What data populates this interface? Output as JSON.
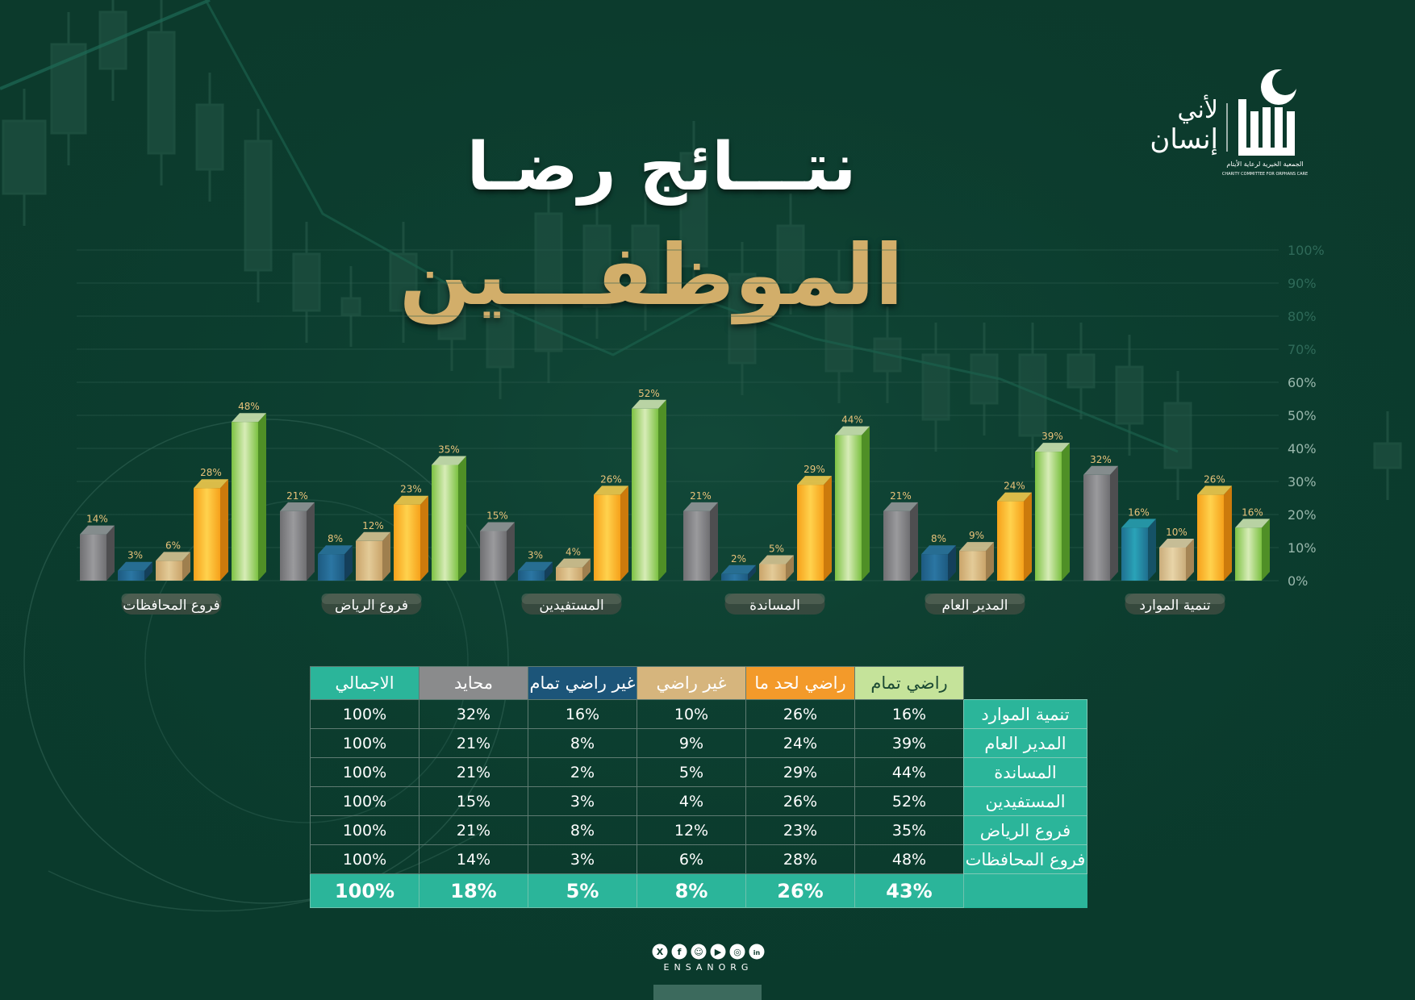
{
  "title_line1": "نتـــائج رضـا",
  "title_line2": "الموظفـــين",
  "logo": {
    "text_main": "إنسان",
    "text_side1": "لأني",
    "text_side2": "إنسان",
    "subtitle_ar": "الجمعية الخيرية لرعاية الأيتام",
    "subtitle_en": "CHARITY COMMITTEE FOR ORPHANS CARE"
  },
  "colors": {
    "very_satisfied": "#7bc043",
    "somewhat_satisfied": "#f7a21b",
    "not_satisfied": "#c9ad78",
    "not_satisfied_at_all": "#1f5f86",
    "neutral": "#8a8a8a",
    "table_accent": "#2bb59a"
  },
  "chart_data": {
    "type": "bar",
    "ylim": [
      0,
      100
    ],
    "yticks": [
      "0%",
      "10%",
      "20%",
      "30%",
      "40%",
      "50%",
      "60%",
      "70%",
      "80%",
      "90%",
      "100%"
    ],
    "groups": [
      {
        "label": "فروع المحافظات",
        "values": [
          14,
          3,
          6,
          28,
          48
        ]
      },
      {
        "label": "فروع الرياض",
        "values": [
          21,
          8,
          12,
          23,
          35
        ]
      },
      {
        "label": "المستفيدين",
        "values": [
          15,
          3,
          4,
          26,
          52
        ]
      },
      {
        "label": "المساندة",
        "values": [
          21,
          2,
          5,
          29,
          44
        ]
      },
      {
        "label": "المدير العام",
        "values": [
          21,
          8,
          9,
          24,
          39
        ]
      },
      {
        "label": "تنمية الموارد",
        "values": [
          32,
          16,
          10,
          26,
          16
        ]
      }
    ],
    "series_order": [
      "محايد",
      "غير راضي تمام",
      "غير راضي",
      "راضي لحد ما",
      "راضي تمام"
    ]
  },
  "table": {
    "headers": [
      "راضي تمام",
      "راضي لحد ما",
      "غير راضي",
      "غير راضي تمام",
      "محايد",
      "الاجمالي"
    ],
    "rows": [
      {
        "label": "تنمية الموارد",
        "cells": [
          "16%",
          "26%",
          "10%",
          "16%",
          "32%",
          "100%"
        ]
      },
      {
        "label": "المدير العام",
        "cells": [
          "39%",
          "24%",
          "9%",
          "8%",
          "21%",
          "100%"
        ]
      },
      {
        "label": "المساندة",
        "cells": [
          "44%",
          "29%",
          "5%",
          "2%",
          "21%",
          "100%"
        ]
      },
      {
        "label": "المستفيدين",
        "cells": [
          "52%",
          "26%",
          "4%",
          "3%",
          "15%",
          "100%"
        ]
      },
      {
        "label": "فروع الرياض",
        "cells": [
          "35%",
          "23%",
          "12%",
          "8%",
          "21%",
          "100%"
        ]
      },
      {
        "label": "فروع المحافظات",
        "cells": [
          "48%",
          "28%",
          "6%",
          "3%",
          "14%",
          "100%"
        ]
      }
    ],
    "totals": [
      "43%",
      "26%",
      "8%",
      "5%",
      "18%",
      "100%"
    ]
  },
  "footer": {
    "handle": "ENSANORG",
    "icons": [
      "x-icon",
      "facebook-icon",
      "snapchat-icon",
      "youtube-icon",
      "instagram-icon",
      "linkedin-icon"
    ]
  }
}
